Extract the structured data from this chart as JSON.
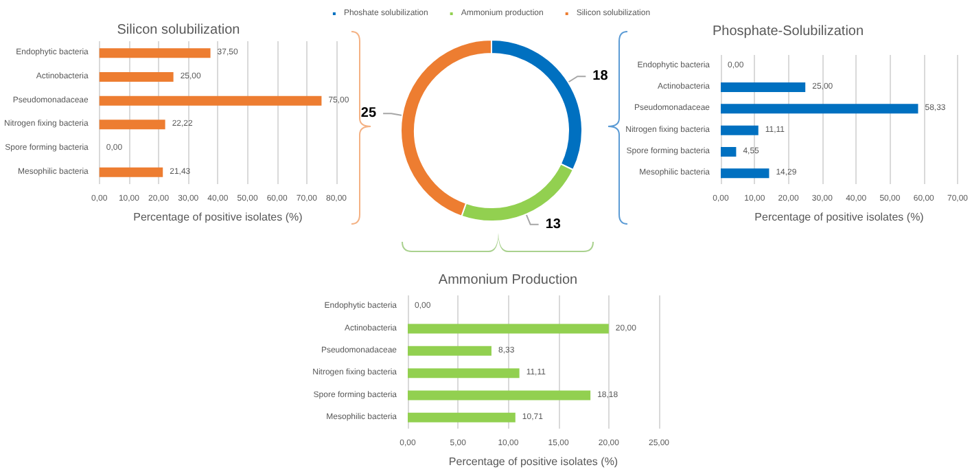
{
  "chart_data": [
    {
      "type": "bar",
      "orientation": "horizontal",
      "title": "Silicon solubilization",
      "xlabel": "Percentage of positive isolates (%)",
      "categories": [
        "Endophytic bacteria",
        "Actinobacteria",
        "Pseudomonadaceae",
        "Nitrogen fixing bacteria",
        "Spore forming bacteria",
        "Mesophilic bacteria"
      ],
      "values": [
        37.5,
        25,
        75,
        22.22,
        0,
        21.43
      ],
      "value_labels": [
        "37,50",
        "25,00",
        "75,00",
        "22,22",
        "0,00",
        "21,43"
      ],
      "color": "#ed7d31",
      "xlim": [
        0,
        80
      ],
      "xticks": [
        {
          "value": 0,
          "label": "0,00"
        },
        {
          "value": 10,
          "label": "10,00"
        },
        {
          "value": 20,
          "label": "20,00"
        },
        {
          "value": 30,
          "label": "30,00"
        },
        {
          "value": 40,
          "label": "40,00"
        },
        {
          "value": 50,
          "label": "50,00"
        },
        {
          "value": 60,
          "label": "60,00"
        },
        {
          "value": 70,
          "label": "70,00"
        },
        {
          "value": 80,
          "label": "80,00"
        }
      ],
      "grid": "x"
    },
    {
      "type": "donut",
      "categories": [
        "Phoshate solubilization",
        "Ammonium production",
        "Silicon solubilization"
      ],
      "values": [
        18,
        13,
        25
      ],
      "colors": [
        "#0070c0",
        "#92d050",
        "#ed7d31"
      ],
      "data_labels": true,
      "legend": "top"
    },
    {
      "type": "bar",
      "orientation": "horizontal",
      "title": "Phosphate-Solubilization",
      "xlabel": "Percentage of positive isolates (%)",
      "categories": [
        "Endophytic bacteria",
        "Actinobacteria",
        "Pseudomonadaceae",
        "Nitrogen fixing bacteria",
        "Spore forming bacteria",
        "Mesophilic bacteria"
      ],
      "values": [
        0,
        25,
        58.33,
        11.11,
        4.55,
        14.29
      ],
      "value_labels": [
        "0,00",
        "25,00",
        "58,33",
        "11,11",
        "4,55",
        "14,29"
      ],
      "color": "#0070c0",
      "xlim": [
        0,
        70
      ],
      "xticks": [
        {
          "value": 0,
          "label": "0,00"
        },
        {
          "value": 10,
          "label": "10,00"
        },
        {
          "value": 20,
          "label": "20,00"
        },
        {
          "value": 30,
          "label": "30,00"
        },
        {
          "value": 40,
          "label": "40,00"
        },
        {
          "value": 50,
          "label": "50,00"
        },
        {
          "value": 60,
          "label": "60,00"
        },
        {
          "value": 70,
          "label": "70,00"
        }
      ],
      "grid": "x"
    },
    {
      "type": "bar",
      "orientation": "horizontal",
      "title": "Ammonium Production",
      "xlabel": "Percentage of positive isolates (%)",
      "categories": [
        "Endophytic bacteria",
        "Actinobacteria",
        "Pseudomonadaceae",
        "Nitrogen fixing bacteria",
        "Spore forming bacteria",
        "Mesophilic bacteria"
      ],
      "values": [
        0,
        20,
        8.33,
        11.11,
        18.18,
        10.71
      ],
      "value_labels": [
        "0,00",
        "20,00",
        "8,33",
        "11,11",
        "18,18",
        "10,71"
      ],
      "color": "#92d050",
      "xlim": [
        0,
        25
      ],
      "xticks": [
        {
          "value": 0,
          "label": "0,00"
        },
        {
          "value": 5,
          "label": "5,00"
        },
        {
          "value": 10,
          "label": "10,00"
        },
        {
          "value": 15,
          "label": "15,00"
        },
        {
          "value": 20,
          "label": "20,00"
        },
        {
          "value": 25,
          "label": "25,00"
        }
      ],
      "grid": "x"
    }
  ]
}
